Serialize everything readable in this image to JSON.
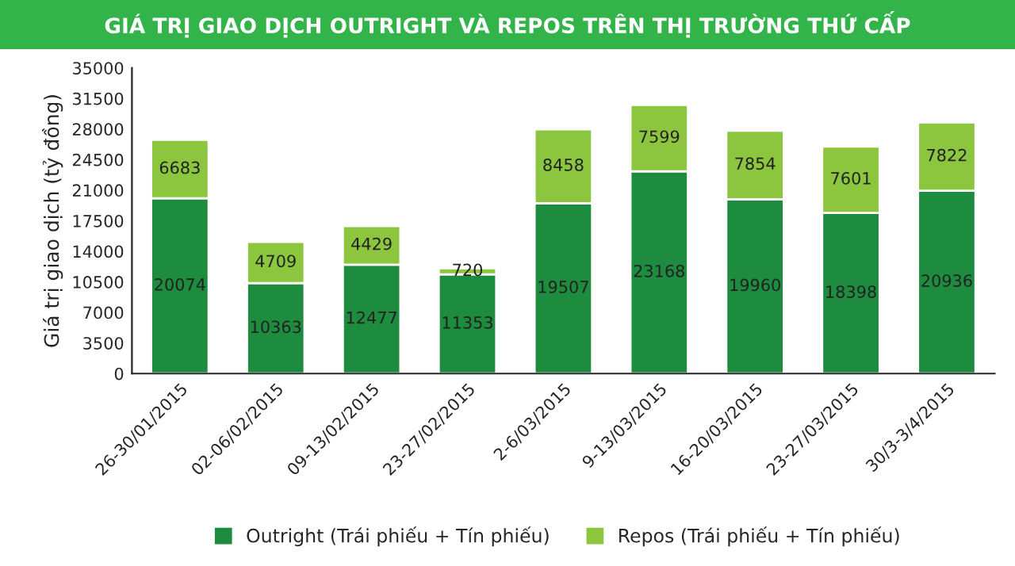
{
  "chart_data": {
    "type": "bar",
    "stacked": true,
    "title": "GIÁ TRỊ GIAO DỊCH OUTRIGHT VÀ REPOS TRÊN THỊ TRƯỜNG THỨ CẤP",
    "ylabel": "Giá trị giao dịch (tỷ đồng)",
    "categories": [
      "26-30/01/2015",
      "02-06/02/2015",
      "09-13/02/2015",
      "23-27/02/2015",
      "2-6/03/2015",
      "9-13/03/2015",
      "16-20/03/2015",
      "23-27/03/2015",
      "30/3-3/4/2015"
    ],
    "series": [
      {
        "name": "Outright (Trái phiếu + Tín phiếu)",
        "color": "#1e8c3e",
        "values": [
          20074,
          10363,
          12477,
          11353,
          19507,
          23168,
          19960,
          18398,
          20936
        ]
      },
      {
        "name": "Repos (Trái phiếu + Tín phiếu)",
        "color": "#8cc63f",
        "values": [
          6683,
          4709,
          4429,
          720,
          8458,
          7599,
          7854,
          7601,
          7822
        ]
      }
    ],
    "ylim": [
      0,
      35000
    ],
    "yticks": [
      0,
      3500,
      7000,
      10500,
      14000,
      17500,
      21000,
      24500,
      28000,
      31500,
      35000
    ],
    "data_labels": true,
    "grid": false,
    "legend": "bottom"
  }
}
